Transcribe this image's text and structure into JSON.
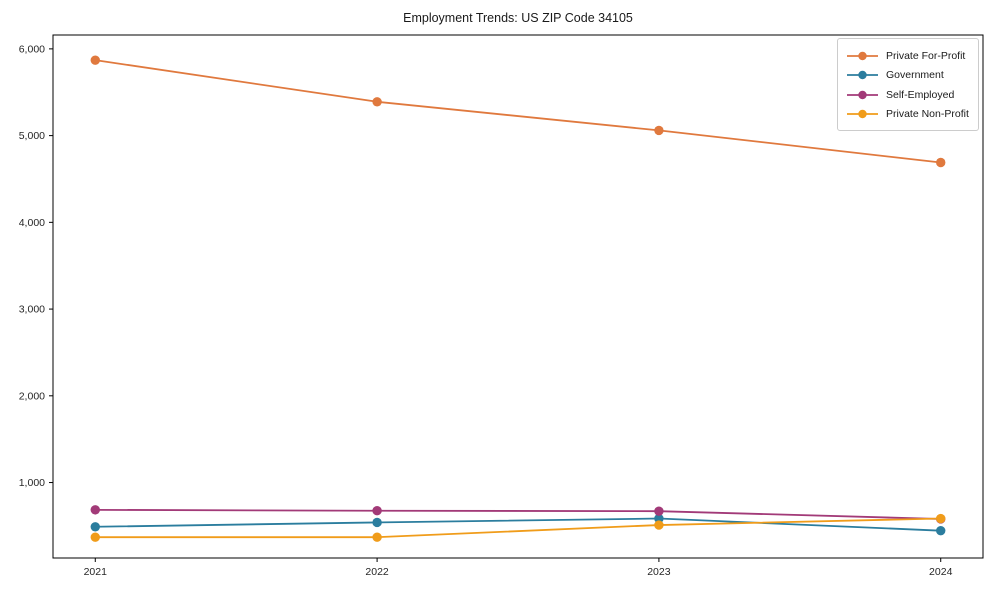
{
  "chart_data": {
    "type": "line",
    "title": "Employment Trends: US ZIP Code 34105",
    "xlabel": "",
    "ylabel": "",
    "x": [
      2021,
      2022,
      2023,
      2024
    ],
    "xlim": [
      2020.85,
      2024.15
    ],
    "ylim": [
      130,
      6160
    ],
    "yticks": [
      1000,
      2000,
      3000,
      4000,
      5000,
      6000
    ],
    "grid": false,
    "legend_position": "top-right",
    "axis_color": "#000000",
    "tick_label_color": "#262626",
    "series": [
      {
        "id": "private-for-profit",
        "name": "Private For-Profit",
        "color": "#e0793e",
        "values": [
          5870,
          5390,
          5060,
          4690
        ]
      },
      {
        "id": "government",
        "name": "Government",
        "color": "#2b7d9e",
        "values": [
          490,
          540,
          585,
          445
        ]
      },
      {
        "id": "self-employed",
        "name": "Self-Employed",
        "color": "#a23a78",
        "values": [
          685,
          675,
          670,
          580
        ]
      },
      {
        "id": "private-non-profit",
        "name": "Private Non-Profit",
        "color": "#f09c1a",
        "values": [
          370,
          370,
          510,
          585
        ]
      }
    ]
  }
}
